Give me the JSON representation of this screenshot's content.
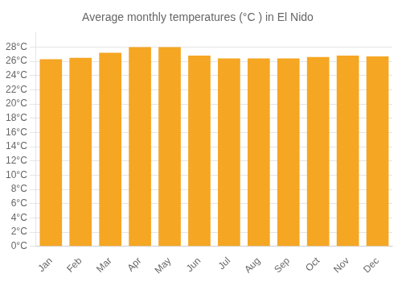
{
  "chart_data": {
    "type": "bar",
    "title": "Average monthly temperatures (°C ) in El Nido",
    "categories": [
      "Jan",
      "Feb",
      "Mar",
      "Apr",
      "May",
      "Jun",
      "Jul",
      "Aug",
      "Sep",
      "Oct",
      "Nov",
      "Dec"
    ],
    "values": [
      26.3,
      26.5,
      27.2,
      28.0,
      28.0,
      26.8,
      26.4,
      26.4,
      26.4,
      26.6,
      26.8,
      26.7
    ],
    "color": "#F5A623",
    "ylim": [
      0,
      30
    ],
    "yticks": [
      {
        "value": 0,
        "label": "0°C"
      },
      {
        "value": 2,
        "label": "2°C"
      },
      {
        "value": 4,
        "label": "4°C"
      },
      {
        "value": 6,
        "label": "6°C"
      },
      {
        "value": 8,
        "label": "8°C"
      },
      {
        "value": 10,
        "label": "10°C"
      },
      {
        "value": 12,
        "label": "12°C"
      },
      {
        "value": 14,
        "label": "14°C"
      },
      {
        "value": 16,
        "label": "16°C"
      },
      {
        "value": 18,
        "label": "18°C"
      },
      {
        "value": 20,
        "label": "20°C"
      },
      {
        "value": 22,
        "label": "22°C"
      },
      {
        "value": 24,
        "label": "24°C"
      },
      {
        "value": 26,
        "label": "26°C"
      },
      {
        "value": 28,
        "label": "28°C"
      }
    ],
    "grid": true
  }
}
